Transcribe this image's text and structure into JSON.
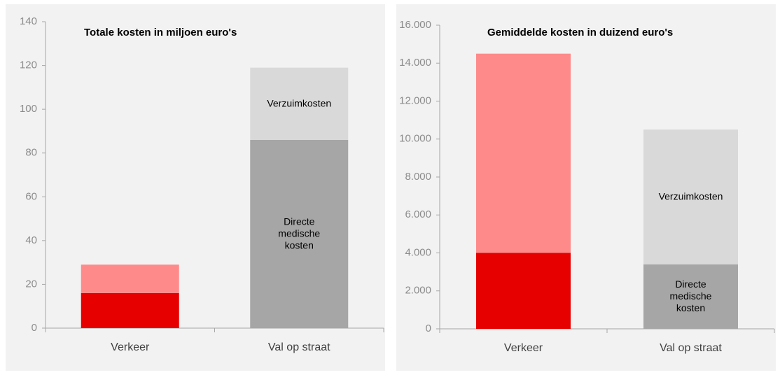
{
  "chart_data": [
    {
      "type": "stacked_bar",
      "title": "Totale kosten in miljoen euro's",
      "categories": [
        "Verkeer",
        "Val op straat"
      ],
      "series": [
        {
          "name": "Directe medische kosten",
          "colors": [
            "#e60000",
            "#a6a6a6"
          ],
          "values": [
            16,
            86
          ]
        },
        {
          "name": "Verzuimkosten",
          "colors": [
            "#ff8a8a",
            "#d9d9d9"
          ],
          "values": [
            13,
            33
          ]
        }
      ],
      "ylim": [
        0,
        140
      ],
      "yticks": [
        0,
        20,
        40,
        60,
        80,
        100,
        120,
        140
      ]
    },
    {
      "type": "stacked_bar",
      "title": "Gemiddelde kosten in duizend euro's",
      "categories": [
        "Verkeer",
        "Val op straat"
      ],
      "series": [
        {
          "name": "Directe medische kosten",
          "colors": [
            "#e60000",
            "#a6a6a6"
          ],
          "values": [
            4000,
            3400
          ]
        },
        {
          "name": "Verzuimkosten",
          "colors": [
            "#ff8a8a",
            "#d9d9d9"
          ],
          "values": [
            10500,
            7100
          ]
        }
      ],
      "ylim": [
        0,
        16000
      ],
      "yticks": [
        0,
        {
          "value": 2000,
          "label": "2.000"
        },
        {
          "value": 4000,
          "label": "4.000"
        },
        {
          "value": 6000,
          "label": "6.000"
        },
        {
          "value": 8000,
          "label": "8.000"
        },
        {
          "value": 10000,
          "label": "10.000"
        },
        {
          "value": 12000,
          "label": "12.000"
        },
        {
          "value": 14000,
          "label": "14.000"
        },
        {
          "value": 16000,
          "label": "16.000"
        }
      ]
    }
  ]
}
